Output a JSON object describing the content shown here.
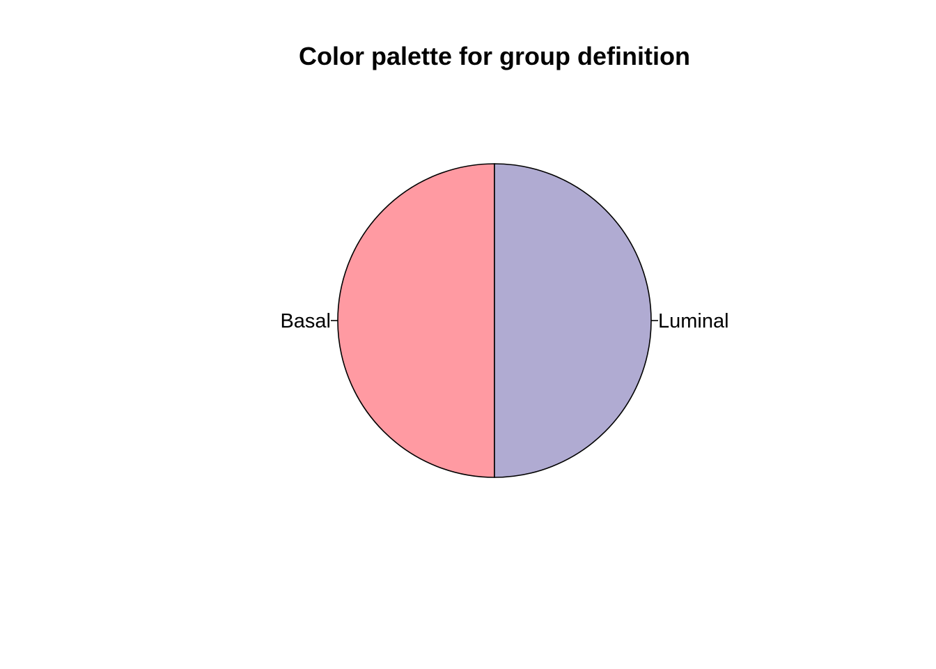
{
  "chart_data": {
    "type": "pie",
    "title": "Color palette for group definition",
    "labels": [
      "Basal",
      "Luminal"
    ],
    "values": [
      1,
      1
    ],
    "colors": [
      "#FF9AA2",
      "#B0ABD2"
    ],
    "start_angle_deg": 90,
    "direction": "counterclockwise"
  }
}
